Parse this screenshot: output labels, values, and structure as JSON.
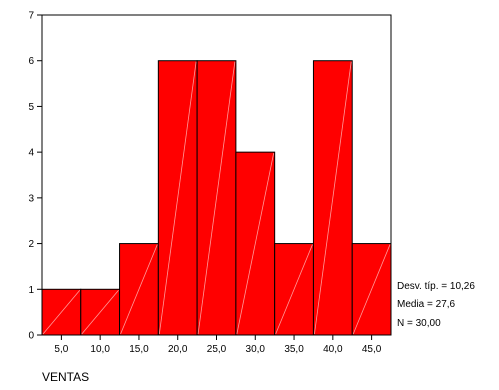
{
  "chart_data": {
    "type": "bar",
    "subtype": "histogram",
    "xlabel": "VENTAS",
    "ylim": [
      0,
      7
    ],
    "y_ticks": [
      "0",
      "1",
      "2",
      "3",
      "4",
      "5",
      "6",
      "7"
    ],
    "bins": [
      "5,0",
      "10,0",
      "15,0",
      "20,0",
      "25,0",
      "30,0",
      "35,0",
      "40,0",
      "45,0"
    ],
    "values": [
      1,
      1,
      2,
      6,
      6,
      4,
      2,
      6,
      2
    ],
    "bar_color": "#ff0000",
    "grid": false,
    "stats": [
      "Desv. típ. = 10,26",
      "Media = 27,6",
      "N = 30,00"
    ]
  }
}
